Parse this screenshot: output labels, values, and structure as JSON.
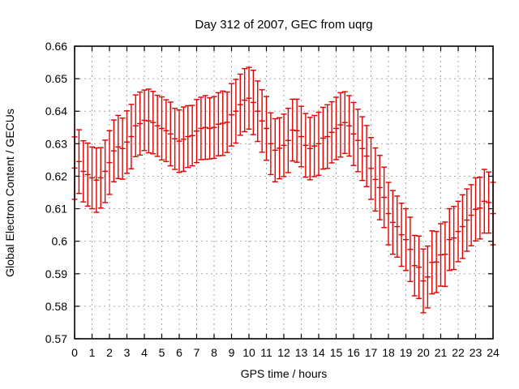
{
  "page": {
    "background": "#ffffff"
  },
  "chart_data": {
    "type": "scatter",
    "subtype": "yerrorbars",
    "title": "Day 312 of 2007, GEC from uqrg",
    "xlabel": "GPS time / hours",
    "ylabel": "Global Electron Content / GECUs",
    "xlim": [
      0,
      24
    ],
    "ylim": [
      0.57,
      0.66
    ],
    "grid": true,
    "legend": null,
    "colors": {
      "series": "#e00000",
      "grid": "#a8a8a8",
      "border": "#000000",
      "background": "#ffffff"
    },
    "x_tick_labels": [
      "0",
      "1",
      "2",
      "3",
      "4",
      "5",
      "6",
      "7",
      "8",
      "9",
      "10",
      "11",
      "12",
      "13",
      "14",
      "15",
      "16",
      "17",
      "18",
      "19",
      "20",
      "21",
      "22",
      "23",
      "24"
    ],
    "y_tick_labels": [
      "0.57",
      "0.58",
      "0.59",
      "0.6",
      "0.61",
      "0.62",
      "0.63",
      "0.64",
      "0.65",
      "0.66"
    ],
    "x_start": 0,
    "x_step": 0.25,
    "y": [
      0.6225,
      0.6245,
      0.6215,
      0.6205,
      0.6195,
      0.6188,
      0.6195,
      0.6215,
      0.6242,
      0.6278,
      0.629,
      0.6285,
      0.6305,
      0.6322,
      0.6355,
      0.6362,
      0.6372,
      0.637,
      0.6365,
      0.6355,
      0.6347,
      0.634,
      0.633,
      0.6315,
      0.6308,
      0.6314,
      0.6322,
      0.6325,
      0.6339,
      0.6347,
      0.635,
      0.6347,
      0.635,
      0.636,
      0.6363,
      0.6366,
      0.6389,
      0.64,
      0.642,
      0.6434,
      0.644,
      0.6427,
      0.64,
      0.637,
      0.6347,
      0.63,
      0.628,
      0.6286,
      0.6295,
      0.631,
      0.6342,
      0.634,
      0.6322,
      0.6295,
      0.6285,
      0.6293,
      0.63,
      0.6317,
      0.6322,
      0.6335,
      0.6347,
      0.6358,
      0.6365,
      0.6355,
      0.633,
      0.631,
      0.6285,
      0.6262,
      0.6224,
      0.619,
      0.6165,
      0.6135,
      0.6085,
      0.6058,
      0.6045,
      0.602,
      0.6005,
      0.5975,
      0.5925,
      0.592,
      0.5878,
      0.589,
      0.5935,
      0.5936,
      0.5958,
      0.596,
      0.6005,
      0.601,
      0.603,
      0.6045,
      0.6065,
      0.608,
      0.6098,
      0.6102,
      0.6123,
      0.6119,
      0.6085
    ],
    "yerr": [
      0.0096,
      0.0098,
      0.0094,
      0.0097,
      0.0095,
      0.0099,
      0.0093,
      0.0096,
      0.0098,
      0.0095,
      0.0097,
      0.0094,
      0.0096,
      0.0099,
      0.0095,
      0.0097,
      0.0093,
      0.0098,
      0.0096,
      0.0094,
      0.0097,
      0.0095,
      0.0098,
      0.0094,
      0.0096,
      0.0099,
      0.0095,
      0.0093,
      0.0097,
      0.0096,
      0.0098,
      0.0094,
      0.0095,
      0.0097,
      0.0099,
      0.0093,
      0.0096,
      0.0098,
      0.0094,
      0.0097,
      0.0095,
      0.0099,
      0.0093,
      0.0096,
      0.0098,
      0.0095,
      0.0097,
      0.0094,
      0.0096,
      0.0099,
      0.0095,
      0.0097,
      0.0093,
      0.0098,
      0.0096,
      0.0094,
      0.0097,
      0.0095,
      0.0098,
      0.0094,
      0.0096,
      0.0099,
      0.0095,
      0.0093,
      0.0097,
      0.0096,
      0.0098,
      0.0094,
      0.0095,
      0.0097,
      0.0099,
      0.0093,
      0.0096,
      0.0098,
      0.0094,
      0.0097,
      0.0095,
      0.0099,
      0.0093,
      0.0096,
      0.0098,
      0.0095,
      0.0097,
      0.0094,
      0.0096,
      0.0099,
      0.0095,
      0.0097,
      0.0093,
      0.0098,
      0.0096,
      0.0094,
      0.0097,
      0.0095,
      0.0098,
      0.0094,
      0.0096
    ]
  }
}
